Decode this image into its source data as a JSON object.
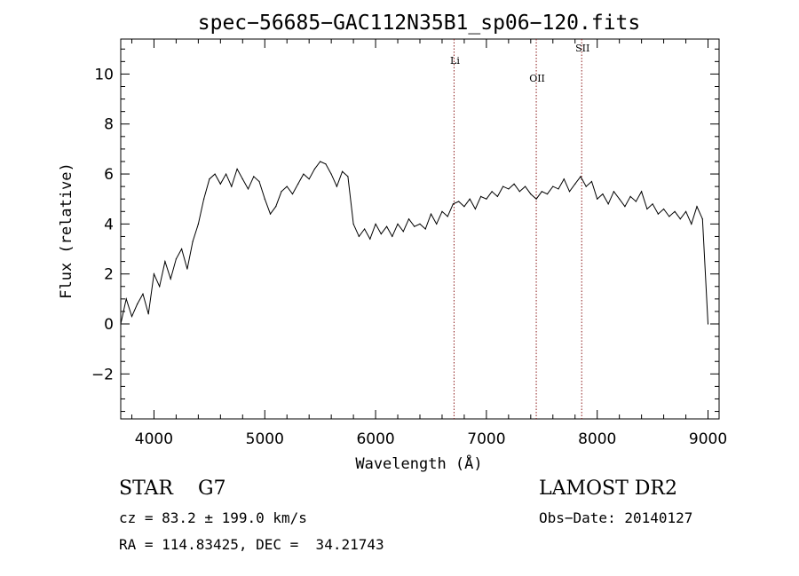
{
  "chart_data": {
    "type": "line",
    "title": "spec−56685−GAC112N35B1_sp06−120.fits",
    "xlabel": "Wavelength (Å)",
    "ylabel": "Flux (relative)",
    "xlim": [
      3700,
      9100
    ],
    "ylim": [
      -3.8,
      11.4
    ],
    "x_ticks": [
      4000,
      5000,
      6000,
      7000,
      8000,
      9000
    ],
    "y_ticks": [
      -2,
      0,
      2,
      4,
      6,
      8,
      10
    ],
    "grid": false,
    "series": [
      {
        "x": [
          3700,
          3750,
          3800,
          3850,
          3900,
          3950,
          4000,
          4050,
          4100,
          4150,
          4200,
          4250,
          4300,
          4350,
          4400,
          4450,
          4500,
          4550,
          4600,
          4650,
          4700,
          4750,
          4800,
          4850,
          4900,
          4950,
          5000,
          5050,
          5100,
          5150,
          5200,
          5250,
          5300,
          5350,
          5400,
          5450,
          5500,
          5550,
          5600,
          5650,
          5700,
          5750,
          5800,
          5850,
          5900,
          5950,
          6000,
          6050,
          6100,
          6150,
          6200,
          6250,
          6300,
          6350,
          6400,
          6450,
          6500,
          6550,
          6600,
          6650,
          6700,
          6750,
          6800,
          6850,
          6900,
          6950,
          7000,
          7050,
          7100,
          7150,
          7200,
          7250,
          7300,
          7350,
          7400,
          7450,
          7500,
          7550,
          7600,
          7650,
          7700,
          7750,
          7800,
          7850,
          7900,
          7950,
          8000,
          8050,
          8100,
          8150,
          8200,
          8250,
          8300,
          8350,
          8400,
          8450,
          8500,
          8550,
          8600,
          8650,
          8700,
          8750,
          8800,
          8850,
          8900,
          8950,
          9000
        ],
        "y": [
          0.0,
          1.0,
          0.3,
          0.8,
          1.2,
          0.4,
          2.0,
          1.5,
          2.5,
          1.8,
          2.6,
          3.0,
          2.2,
          3.3,
          4.0,
          5.0,
          5.8,
          6.0,
          5.6,
          6.0,
          5.5,
          6.2,
          5.8,
          5.4,
          5.9,
          5.7,
          5.0,
          4.4,
          4.7,
          5.3,
          5.5,
          5.2,
          5.6,
          6.0,
          5.8,
          6.2,
          6.5,
          6.4,
          6.0,
          5.5,
          6.1,
          5.9,
          4.0,
          3.5,
          3.8,
          3.4,
          4.0,
          3.6,
          3.9,
          3.5,
          4.0,
          3.7,
          4.2,
          3.9,
          4.0,
          3.8,
          4.4,
          4.0,
          4.5,
          4.3,
          4.8,
          4.9,
          4.7,
          5.0,
          4.6,
          5.1,
          5.0,
          5.3,
          5.1,
          5.5,
          5.4,
          5.6,
          5.3,
          5.5,
          5.2,
          5.0,
          5.3,
          5.2,
          5.5,
          5.4,
          5.8,
          5.3,
          5.6,
          5.9,
          5.5,
          5.7,
          5.0,
          5.2,
          4.8,
          5.3,
          5.0,
          4.7,
          5.1,
          4.9,
          5.3,
          4.6,
          4.8,
          4.4,
          4.6,
          4.3,
          4.5,
          4.2,
          4.5,
          4.0,
          4.7,
          4.2,
          0.0
        ]
      }
    ],
    "annotations": [
      {
        "label": "Li",
        "x": 6708,
        "label_y": 10.4
      },
      {
        "label": "OII",
        "x": 7450,
        "label_y": 9.7
      },
      {
        "label": "SII",
        "x": 7860,
        "label_y": 10.9
      }
    ],
    "line_color": "#000000",
    "marker_line_color": "#8b1a1a"
  },
  "info": {
    "object_line": "STAR    G7",
    "survey": "LAMOST DR2",
    "cz_line": "cz = 83.2 ± 199.0 km/s",
    "obs_date_line": "Obs−Date: 20140127",
    "coords_line": "RA = 114.83425, DEC =  34.21743"
  }
}
